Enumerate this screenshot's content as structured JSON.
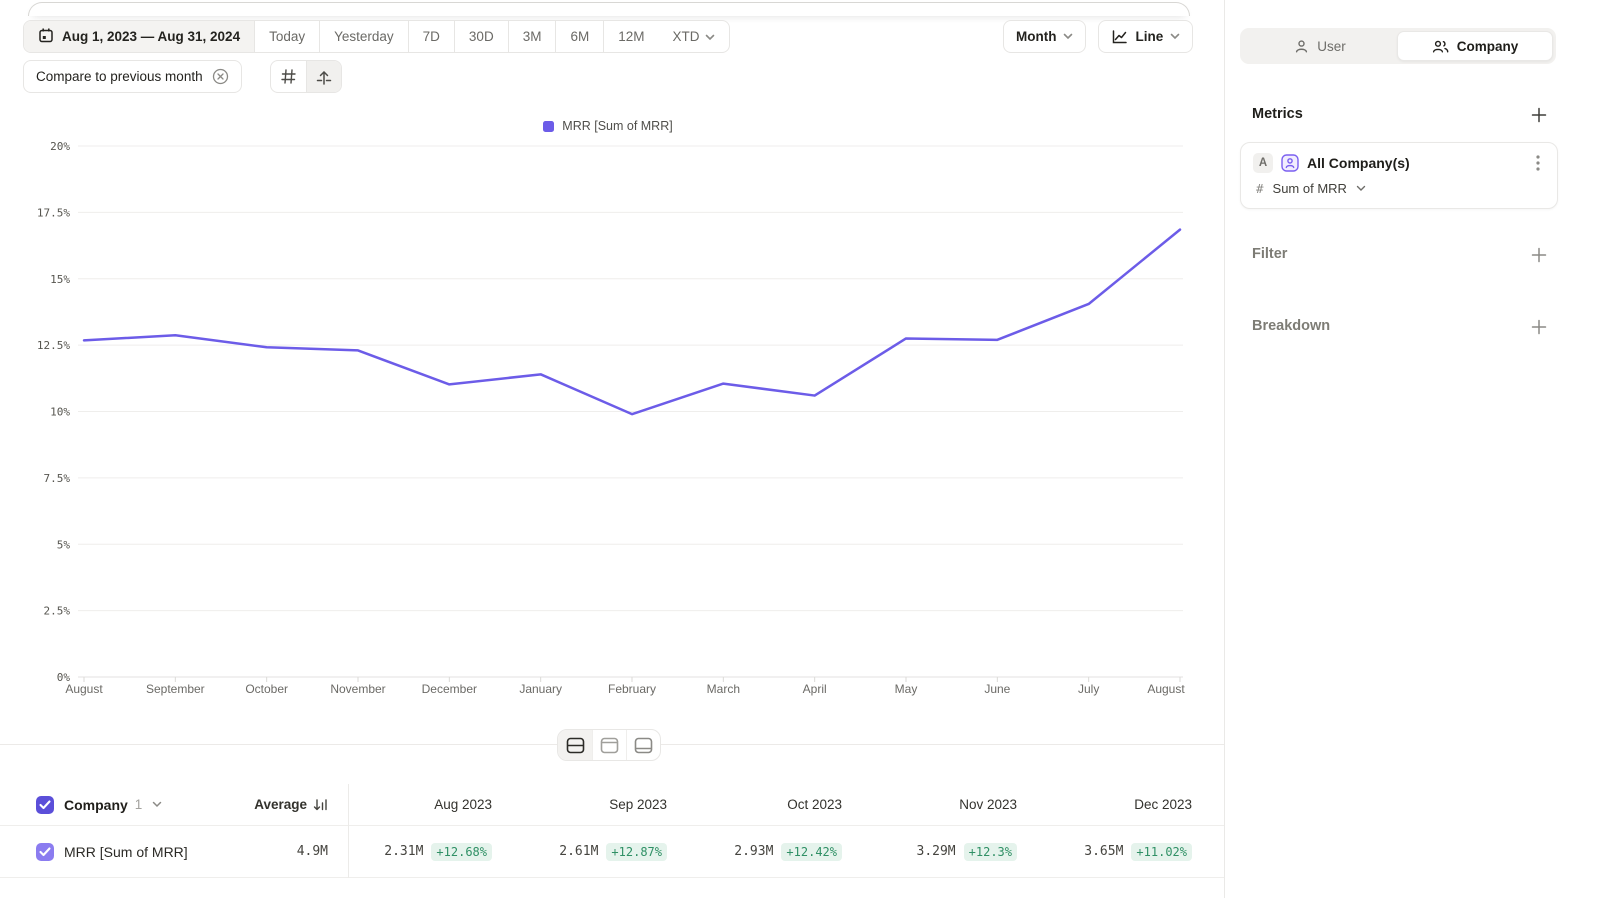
{
  "toolbar": {
    "date_range": "Aug 1, 2023 — Aug 31, 2024",
    "range_buttons": [
      "Today",
      "Yesterday",
      "7D",
      "30D",
      "3M",
      "6M",
      "12M"
    ],
    "xtd_label": "XTD",
    "granularity_label": "Month",
    "chart_type_label": "Line",
    "compare_chip": "Compare to previous month"
  },
  "sidebar": {
    "tabs": [
      {
        "label": "User"
      },
      {
        "label": "Company"
      }
    ],
    "active_tab": "Company",
    "metrics_title": "Metrics",
    "metric_card": {
      "badge": "A",
      "name": "All Company(s)",
      "hash": "#",
      "aggregation": "Sum of MRR"
    },
    "filter_label": "Filter",
    "breakdown_label": "Breakdown"
  },
  "chart_data": {
    "type": "line",
    "legend": [
      "MRR [Sum of MRR]"
    ],
    "x": [
      "August",
      "September",
      "October",
      "November",
      "December",
      "January",
      "February",
      "March",
      "April",
      "May",
      "June",
      "July",
      "August"
    ],
    "series": [
      {
        "name": "MRR [Sum of MRR]",
        "values": [
          12.68,
          12.87,
          12.42,
          12.3,
          11.02,
          11.4,
          9.9,
          11.05,
          10.6,
          12.75,
          12.7,
          14.05,
          16.85
        ],
        "color": "#6c5ce8"
      }
    ],
    "ylim": [
      0,
      20
    ],
    "ytick_step": 2.5,
    "ylabel_format": "percent",
    "grid": true,
    "legend_position": "top-center"
  },
  "table": {
    "entity_label": "Company",
    "entity_count": "1",
    "average_label": "Average",
    "columns": [
      "Aug 2023",
      "Sep 2023",
      "Oct 2023",
      "Nov 2023",
      "Dec 2023"
    ],
    "rows": [
      {
        "name": "MRR [Sum of MRR]",
        "average": "4.9M",
        "values": [
          "2.31M",
          "2.61M",
          "2.93M",
          "3.29M",
          "3.65M"
        ],
        "changes": [
          "+12.68%",
          "+12.87%",
          "+12.42%",
          "+12.3%",
          "+11.02%"
        ]
      }
    ]
  },
  "colors": {
    "accent": "#6c5ce8",
    "checkbox_header": "#5b4fd9",
    "checkbox_row": "#8b7cf0",
    "badge_bg": "#e5f3ec",
    "badge_text": "#2f9065"
  }
}
